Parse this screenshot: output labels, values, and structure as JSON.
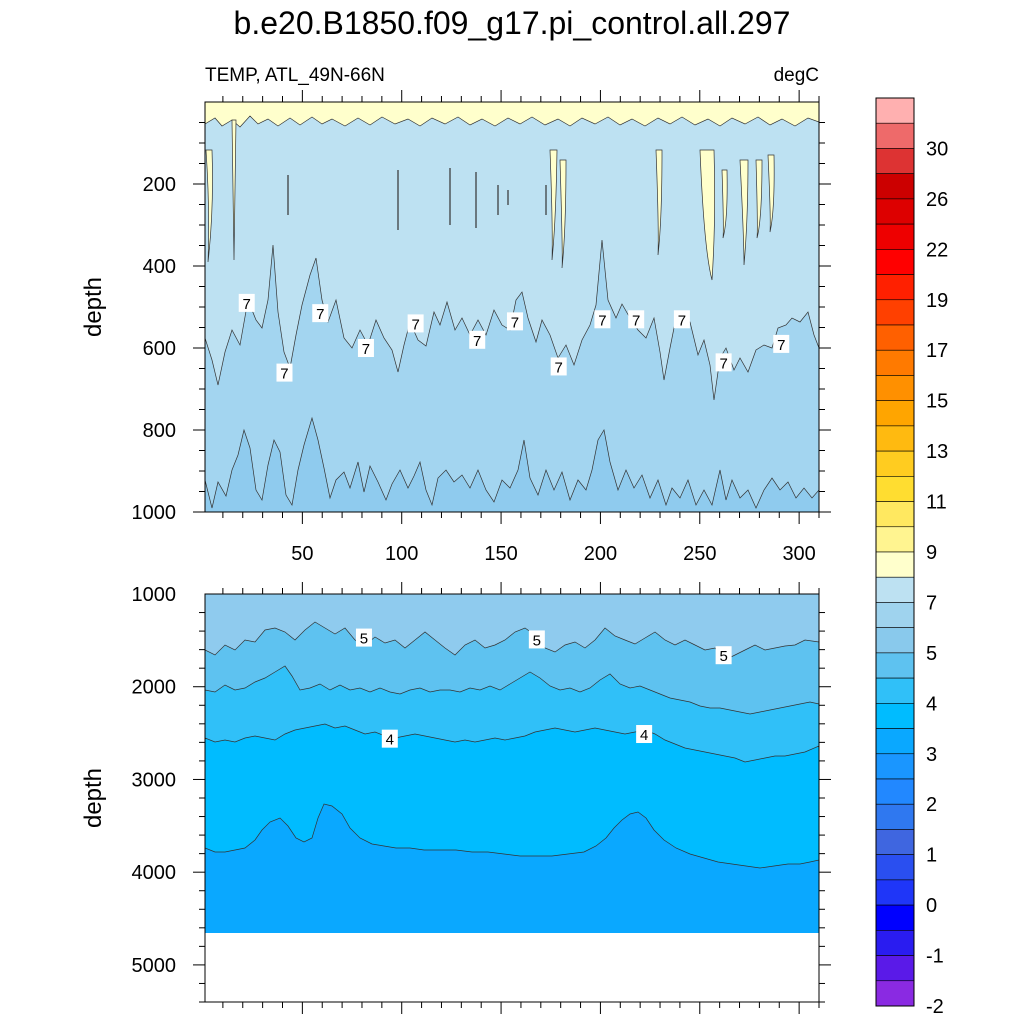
{
  "title": "b.e20.B1850.f09_g17.pi_control.all.297",
  "subtitle_left": "TEMP, ATL_49N-66N",
  "subtitle_right": "degC",
  "chart_data": [
    {
      "type": "contour",
      "panel": "upper",
      "variable": "TEMP",
      "units": "degC",
      "ylabel": "depth",
      "ylim": [
        1000,
        0
      ],
      "xlim": [
        1,
        310
      ],
      "x_ticks": [
        50,
        100,
        150,
        200,
        250,
        300
      ],
      "y_ticks": [
        200,
        400,
        600,
        800,
        1000
      ],
      "contour_interval_labels": [
        {
          "value": "7",
          "x": 22,
          "depth": 490
        },
        {
          "value": "7",
          "x": 41,
          "depth": 660
        },
        {
          "value": "7",
          "x": 59,
          "depth": 515
        },
        {
          "value": "7",
          "x": 82,
          "depth": 600
        },
        {
          "value": "7",
          "x": 107,
          "depth": 540
        },
        {
          "value": "7",
          "x": 138,
          "depth": 580
        },
        {
          "value": "7",
          "x": 157,
          "depth": 535
        },
        {
          "value": "7",
          "x": 179,
          "depth": 645
        },
        {
          "value": "7",
          "x": 201,
          "depth": 530
        },
        {
          "value": "7",
          "x": 218,
          "depth": 530
        },
        {
          "value": "7",
          "x": 241,
          "depth": 530
        },
        {
          "value": "7",
          "x": 262,
          "depth": 635
        },
        {
          "value": "7",
          "x": 291,
          "depth": 590
        }
      ],
      "regions": [
        {
          "range": "8-9",
          "depth_top": 0,
          "depth_bottom": 60
        },
        {
          "range": "7-8",
          "depth_top": 60,
          "depth_bottom": 560
        },
        {
          "range": "6-7",
          "depth_top": 560,
          "depth_bottom": 900
        },
        {
          "range": "5-6",
          "depth_top": 900,
          "depth_bottom": 1000
        }
      ]
    },
    {
      "type": "contour",
      "panel": "lower",
      "variable": "TEMP",
      "units": "degC",
      "ylabel": "depth",
      "ylim": [
        5400,
        1000
      ],
      "xlim": [
        1,
        310
      ],
      "y_ticks": [
        1000,
        2000,
        3000,
        4000,
        5000
      ],
      "bottom_depth": 4620,
      "contour_interval_labels": [
        {
          "value": "5",
          "x": 81,
          "depth": 1470
        },
        {
          "value": "5",
          "x": 168,
          "depth": 1490
        },
        {
          "value": "5",
          "x": 262,
          "depth": 1660
        },
        {
          "value": "4",
          "x": 94,
          "depth": 2560
        },
        {
          "value": "4",
          "x": 222,
          "depth": 2510
        }
      ],
      "regions": [
        {
          "range": "5-6",
          "depth_top": 1000,
          "depth_bottom": 1500
        },
        {
          "range": "4.5-5",
          "depth_top": 1500,
          "depth_bottom": 2000
        },
        {
          "range": "4-4.5",
          "depth_top": 2000,
          "depth_bottom": 2600
        },
        {
          "range": "3.5-4",
          "depth_top": 2600,
          "depth_bottom": 3750
        },
        {
          "range": "3-3.5",
          "depth_top": 3750,
          "depth_bottom": 4620
        }
      ]
    }
  ],
  "colorbar": {
    "labels": [
      "30",
      "26",
      "22",
      "19",
      "17",
      "15",
      "13",
      "11",
      "9",
      "7",
      "5",
      "4",
      "3",
      "2",
      "1",
      "0",
      "-1",
      "-2"
    ],
    "colors": [
      "#ffb0b0",
      "#ee6a6a",
      "#dd3333",
      "#cc0000",
      "#dd0000",
      "#ee0000",
      "#ff0000",
      "#ff2000",
      "#ff4000",
      "#ff6000",
      "#ff7a00",
      "#ff9000",
      "#ffa500",
      "#ffba10",
      "#ffcc20",
      "#ffdd30",
      "#ffe860",
      "#fff490",
      "#ffffcc",
      "#bde1f2",
      "#9fd3ee",
      "#89c9ec",
      "#5ec2f0",
      "#30c0f8",
      "#00bcff",
      "#0aa8ff",
      "#1a96ff",
      "#2288ff",
      "#2f78f0",
      "#3f66e0",
      "#2a4ff0",
      "#1f36f8",
      "#0000ff",
      "#2a1cf0",
      "#5a1ae8",
      "#8a2ae2"
    ]
  }
}
